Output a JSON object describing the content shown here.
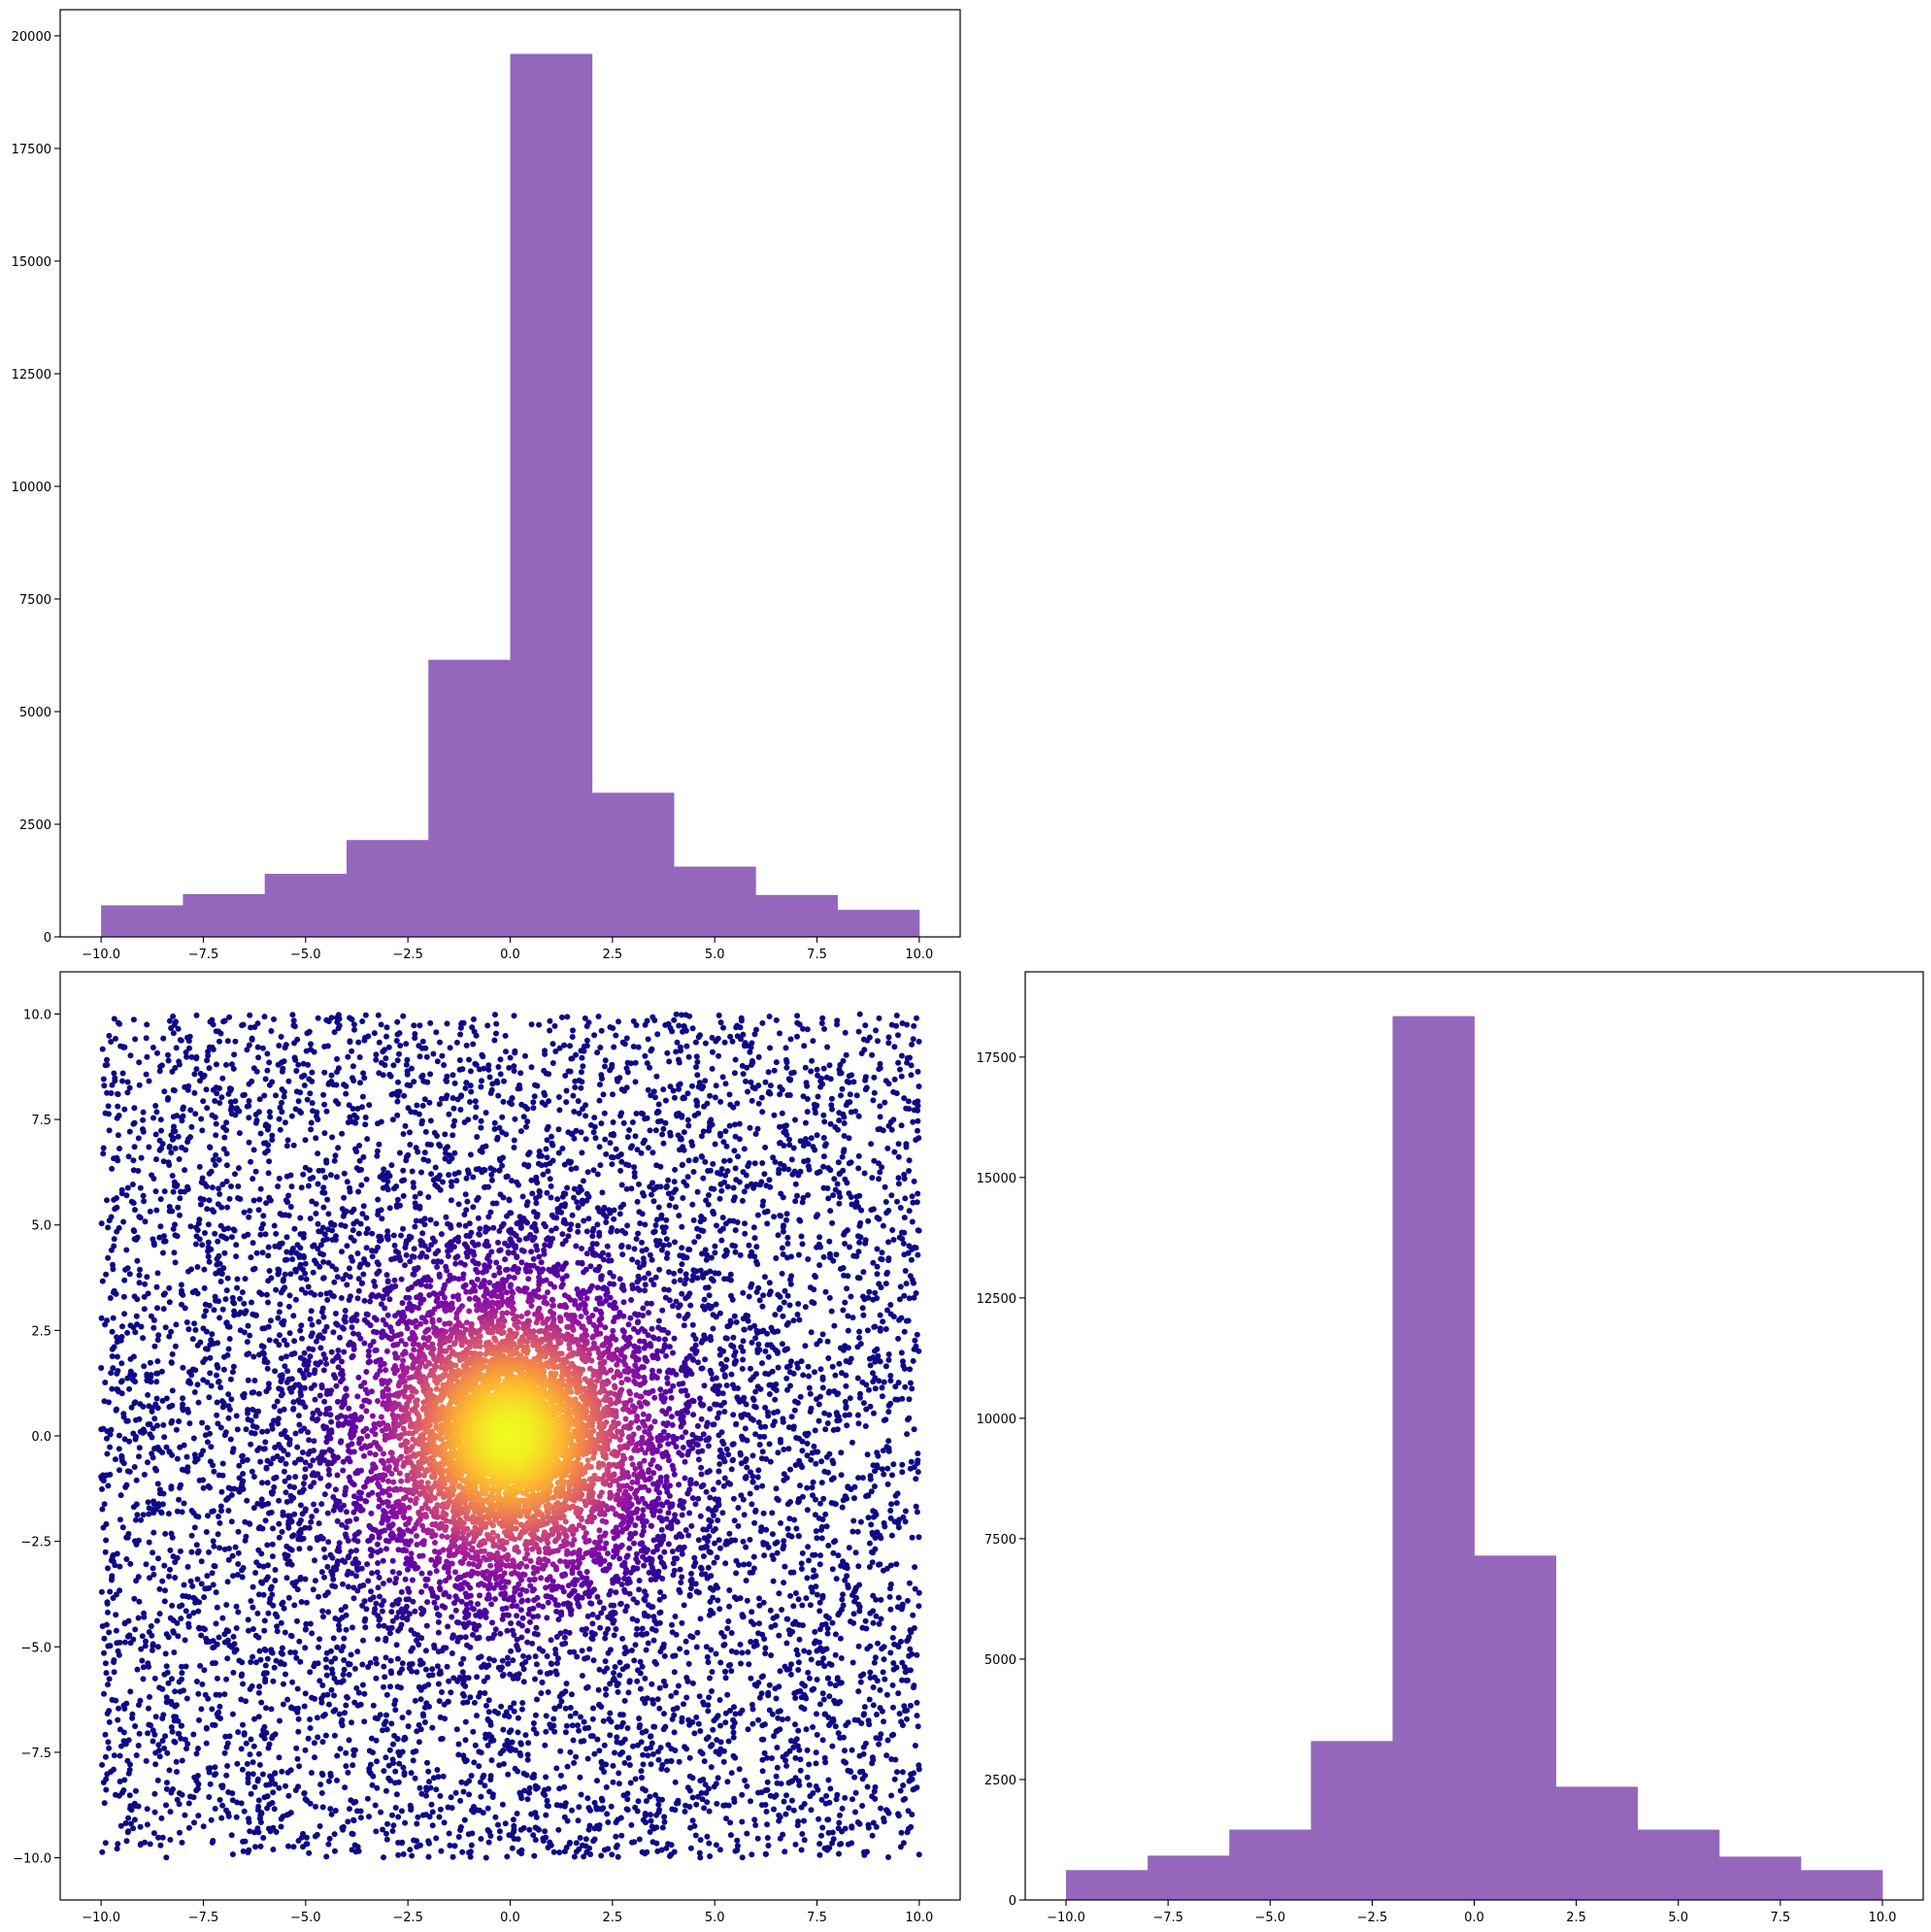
{
  "chart_data": [
    {
      "type": "bar",
      "panel": "top-left",
      "bin_edges": [
        -10,
        -8,
        -6,
        -4,
        -2,
        0,
        2,
        4,
        6,
        8,
        10
      ],
      "values": [
        700,
        950,
        1400,
        2150,
        6150,
        19600,
        3200,
        1560,
        930,
        600
      ],
      "color": "#9467bd",
      "xlim": [
        -11,
        11
      ],
      "ylim": [
        0,
        20580
      ],
      "xticks": [
        -10,
        -7.5,
        -5,
        -2.5,
        0,
        2.5,
        5,
        7.5,
        10
      ],
      "xtick_labels": [
        "−10.0",
        "−7.5",
        "−5.0",
        "−2.5",
        "0.0",
        "2.5",
        "5.0",
        "7.5",
        "10.0"
      ],
      "yticks": [
        0,
        2500,
        5000,
        7500,
        10000,
        12500,
        15000,
        17500,
        20000
      ],
      "ytick_labels": [
        "0",
        "2500",
        "5000",
        "7500",
        "10000",
        "12500",
        "15000",
        "17500",
        "20000"
      ],
      "grid": false,
      "title": "",
      "xlabel": "",
      "ylabel": ""
    },
    {
      "type": "scatter",
      "panel": "bottom-left",
      "xlim": [
        -11,
        11
      ],
      "ylim": [
        -11,
        11
      ],
      "x_range": [
        -10,
        10
      ],
      "y_range": [
        -10,
        10
      ],
      "colormap": "plasma",
      "colormap_stops": [
        "#0d0887",
        "#5c01a6",
        "#9c179e",
        "#cc4778",
        "#ed7953",
        "#fdb42f",
        "#f0f921"
      ],
      "density_peak": [
        0,
        0
      ],
      "xticks": [
        -10,
        -7.5,
        -5,
        -2.5,
        0,
        2.5,
        5,
        7.5,
        10
      ],
      "xtick_labels": [
        "−10.0",
        "−7.5",
        "−5.0",
        "−2.5",
        "0.0",
        "2.5",
        "5.0",
        "7.5",
        "10.0"
      ],
      "yticks": [
        -10,
        -7.5,
        -5,
        -2.5,
        0,
        2.5,
        5,
        7.5,
        10
      ],
      "ytick_labels": [
        "−10.0",
        "−7.5",
        "−5.0",
        "−2.5",
        "0.0",
        "2.5",
        "5.0",
        "7.5",
        "10.0"
      ],
      "grid": false,
      "title": "",
      "xlabel": "",
      "ylabel": ""
    },
    {
      "type": "bar",
      "panel": "bottom-right",
      "bin_edges": [
        -10,
        -8,
        -6,
        -4,
        -2,
        0,
        2,
        4,
        6,
        8,
        10
      ],
      "values": [
        620,
        920,
        1460,
        3300,
        18350,
        7150,
        2350,
        1460,
        900,
        620
      ],
      "color": "#9467bd",
      "xlim": [
        -11,
        11
      ],
      "ylim": [
        0,
        19270
      ],
      "xticks": [
        -10,
        -7.5,
        -5,
        -2.5,
        0,
        2.5,
        5,
        7.5,
        10
      ],
      "xtick_labels": [
        "−10.0",
        "−7.5",
        "−5.0",
        "−2.5",
        "0.0",
        "2.5",
        "5.0",
        "7.5",
        "10.0"
      ],
      "yticks": [
        0,
        2500,
        5000,
        7500,
        10000,
        12500,
        15000,
        17500
      ],
      "ytick_labels": [
        "0",
        "2500",
        "5000",
        "7500",
        "10000",
        "12500",
        "15000",
        "17500"
      ],
      "grid": false,
      "title": "",
      "xlabel": "",
      "ylabel": ""
    }
  ]
}
